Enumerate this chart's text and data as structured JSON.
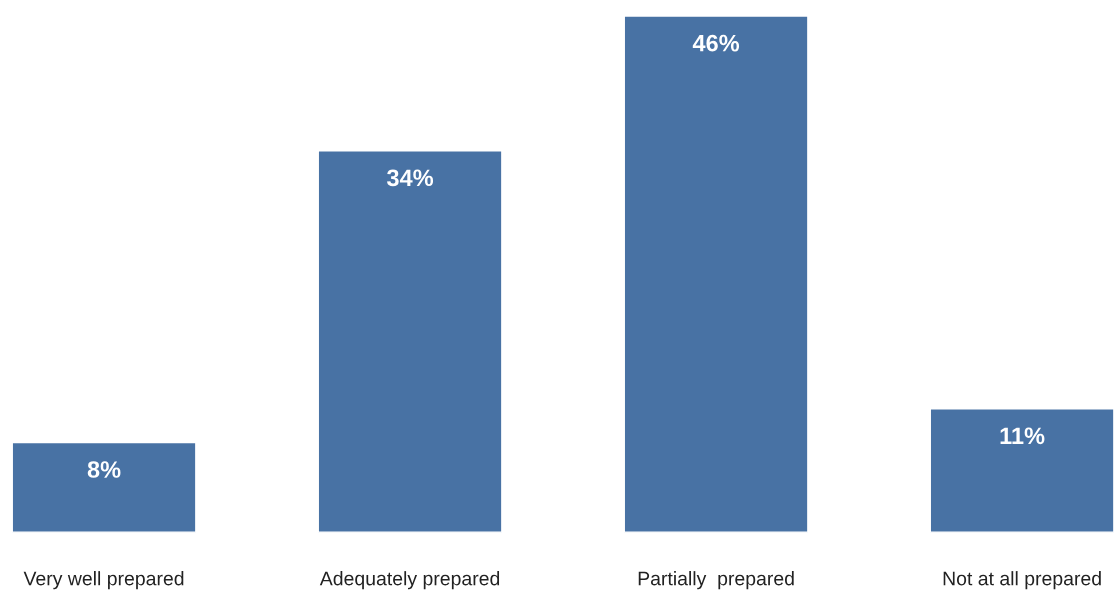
{
  "chart_data": {
    "type": "bar",
    "categories": [
      "Very well prepared",
      "Adequately prepared",
      "Partially  prepared",
      "Not at all prepared"
    ],
    "values": [
      8,
      34,
      46,
      11
    ],
    "value_labels": [
      "8%",
      "34%",
      "46%",
      "11%"
    ],
    "color": "#4872a4"
  }
}
